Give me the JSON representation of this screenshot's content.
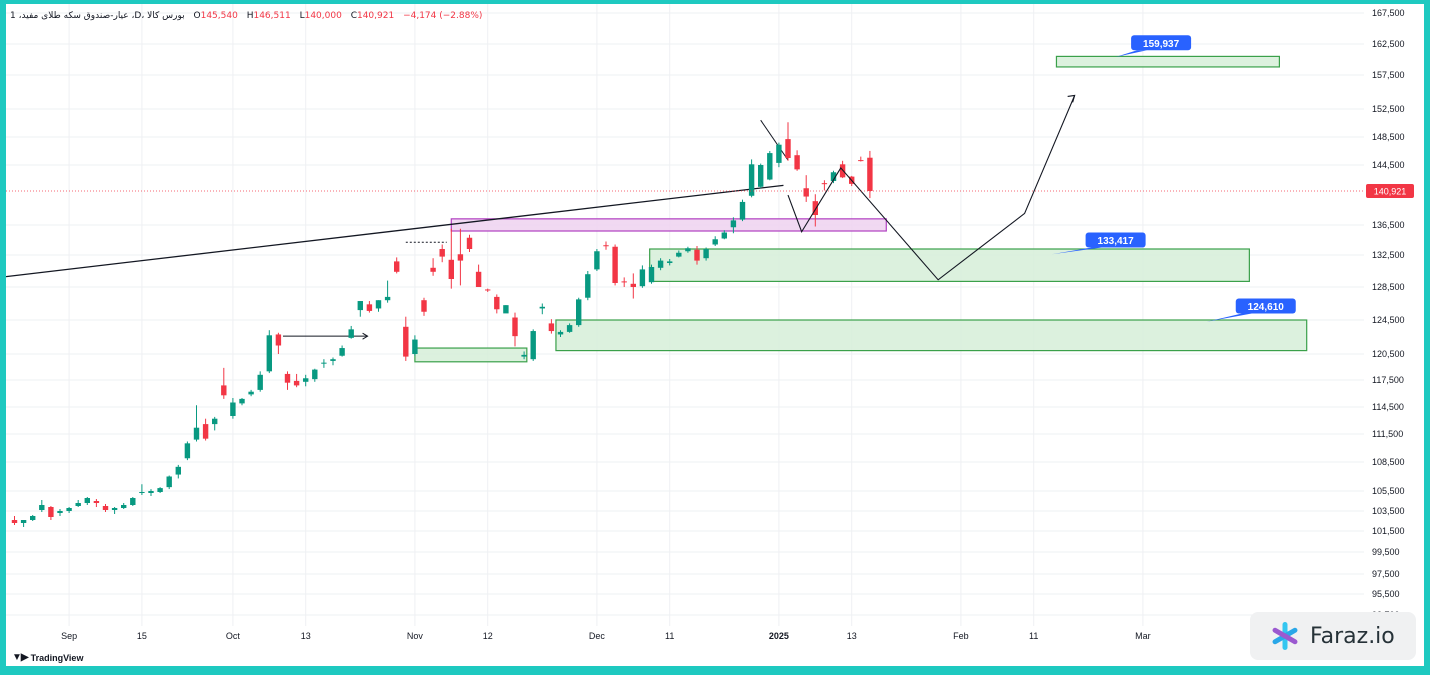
{
  "header": {
    "symbol": "1 ،عیار-صندوق سکه طلای مفید ،D، بورس کالا",
    "open_label": "O",
    "open": "145,540",
    "high_label": "H",
    "high": "146,511",
    "low_label": "L",
    "low": "140,000",
    "close_label": "C",
    "close": "140,921",
    "change": "−4,174 (−2.88%)"
  },
  "branding": {
    "tradingview": "TradingView",
    "watermark": "Faraz.io"
  },
  "colors": {
    "up": "#089981",
    "down": "#f23645",
    "zone_green": "#d6efd8",
    "zone_green_border": "#3aa04a",
    "zone_pink": "#efd2f0",
    "zone_pink_border": "#b040c0",
    "callout": "#2962ff"
  },
  "chart_data": {
    "type": "candlestick",
    "price_axis_ticks": [
      167500,
      162500,
      157500,
      152500,
      148500,
      144500,
      140921,
      136500,
      132500,
      128500,
      124500,
      120500,
      117500,
      114500,
      111500,
      108500,
      105500,
      103500,
      101500,
      99500,
      97500,
      95500,
      93700
    ],
    "price_axis_labels": [
      "167,500",
      "162,500",
      "157,500",
      "152,500",
      "148,500",
      "144,500",
      "140,921",
      "136,500",
      "132,500",
      "128,500",
      "124,500",
      "120,500",
      "117,500",
      "114,500",
      "111,500",
      "108,500",
      "105,500",
      "103,500",
      "101,500",
      "99,500",
      "97,500",
      "95,500",
      "93,700"
    ],
    "time_axis_labels": [
      "Sep",
      "15",
      "Oct",
      "13",
      "Nov",
      "12",
      "Dec",
      "11",
      "2025",
      "13",
      "Feb",
      "11",
      "Mar"
    ],
    "time_axis_bar_index": [
      6,
      14,
      24,
      32,
      44,
      52,
      64,
      72,
      84,
      92,
      104,
      112,
      124
    ],
    "last_price": 140921,
    "candles": [
      [
        102600,
        103000,
        102100,
        102300
      ],
      [
        102300,
        102600,
        101900,
        102600
      ],
      [
        102600,
        103100,
        102500,
        103000
      ],
      [
        103600,
        104600,
        103400,
        104100
      ],
      [
        103900,
        104000,
        102600,
        102900
      ],
      [
        103300,
        103700,
        103000,
        103500
      ],
      [
        103500,
        103900,
        103300,
        103800
      ],
      [
        104000,
        104600,
        103900,
        104300
      ],
      [
        104300,
        104900,
        104100,
        104800
      ],
      [
        104500,
        104700,
        103900,
        104300
      ],
      [
        104000,
        104200,
        103400,
        103600
      ],
      [
        103600,
        103900,
        103200,
        103800
      ],
      [
        103800,
        104300,
        103700,
        104100
      ],
      [
        104100,
        104900,
        104000,
        104800
      ],
      [
        105300,
        106200,
        105100,
        105400
      ],
      [
        105300,
        105700,
        105000,
        105500
      ],
      [
        105400,
        105900,
        105300,
        105800
      ],
      [
        105900,
        107100,
        105700,
        107000
      ],
      [
        107200,
        108200,
        106800,
        108000
      ],
      [
        108900,
        110700,
        108700,
        110500
      ],
      [
        110900,
        114700,
        110700,
        112200
      ],
      [
        112600,
        113200,
        110800,
        111000
      ],
      [
        112600,
        113400,
        111900,
        113200
      ],
      [
        116900,
        118900,
        115400,
        115800
      ],
      [
        113500,
        115500,
        113200,
        115000
      ],
      [
        114900,
        115500,
        114700,
        115400
      ],
      [
        115900,
        116400,
        115700,
        116200
      ],
      [
        116400,
        118500,
        116200,
        118100
      ],
      [
        118500,
        123300,
        118300,
        122700
      ],
      [
        122800,
        123000,
        120500,
        121500
      ],
      [
        118200,
        118500,
        116400,
        117200
      ],
      [
        117400,
        118200,
        116700,
        116900
      ],
      [
        117300,
        118100,
        116800,
        117700
      ],
      [
        117600,
        118800,
        117300,
        118700
      ],
      [
        119400,
        119900,
        118900,
        119500
      ],
      [
        119700,
        120100,
        119200,
        119900
      ],
      [
        120300,
        121500,
        120200,
        121200
      ],
      [
        122400,
        123800,
        122300,
        123400
      ],
      [
        125700,
        126800,
        124900,
        126800
      ],
      [
        126400,
        126800,
        125400,
        125600
      ],
      [
        125900,
        126900,
        125500,
        126900
      ],
      [
        126900,
        129300,
        126600,
        127300
      ],
      [
        131700,
        132200,
        130200,
        130400
      ],
      [
        123700,
        124900,
        119700,
        120200
      ],
      [
        120500,
        122700,
        120300,
        122200
      ],
      [
        126900,
        127200,
        125000,
        125500
      ],
      [
        130900,
        132100,
        129900,
        130400
      ],
      [
        133300,
        133900,
        131600,
        132300
      ],
      [
        131900,
        136000,
        128300,
        129500
      ],
      [
        132600,
        136000,
        128700,
        131800
      ],
      [
        134800,
        135200,
        132900,
        133300
      ],
      [
        130400,
        131300,
        128500,
        128500
      ],
      [
        128200,
        128300,
        127900,
        128100
      ],
      [
        127300,
        127600,
        125300,
        125800
      ],
      [
        125300,
        126300,
        125400,
        126300
      ],
      [
        124800,
        125400,
        121400,
        122600
      ],
      [
        120200,
        120800,
        119900,
        120400
      ],
      [
        119900,
        123400,
        119700,
        123200
      ],
      [
        125900,
        126500,
        125200,
        126100
      ],
      [
        124100,
        124600,
        122900,
        123200
      ],
      [
        122800,
        123300,
        122500,
        123100
      ],
      [
        123100,
        124100,
        123000,
        123900
      ],
      [
        123900,
        127200,
        123700,
        127000
      ],
      [
        127200,
        130500,
        126900,
        130100
      ],
      [
        130700,
        133300,
        130500,
        133000
      ],
      [
        133800,
        134300,
        133200,
        133700
      ],
      [
        133600,
        133900,
        128700,
        129000
      ],
      [
        129200,
        129700,
        128500,
        129100
      ],
      [
        128900,
        130200,
        127100,
        128500
      ],
      [
        128600,
        131200,
        128400,
        130700
      ],
      [
        129100,
        131300,
        128900,
        131000
      ],
      [
        130900,
        132100,
        130600,
        131800
      ],
      [
        131500,
        132000,
        131200,
        131700
      ],
      [
        132300,
        133100,
        132200,
        132800
      ],
      [
        133000,
        133600,
        132800,
        133400
      ],
      [
        133200,
        133700,
        131300,
        131800
      ],
      [
        132100,
        133500,
        131800,
        133300
      ],
      [
        133900,
        135000,
        133700,
        134600
      ],
      [
        134700,
        135800,
        134600,
        135500
      ],
      [
        136200,
        137500,
        135400,
        137100
      ],
      [
        137200,
        139800,
        137000,
        139500
      ],
      [
        140300,
        145300,
        140100,
        144600
      ],
      [
        141500,
        144700,
        141300,
        144500
      ],
      [
        142500,
        146500,
        142400,
        146200
      ],
      [
        144800,
        147700,
        144200,
        147400
      ],
      [
        148200,
        150600,
        145100,
        145500
      ],
      [
        145900,
        146600,
        143700,
        143900
      ],
      [
        141300,
        143100,
        139500,
        140200
      ],
      [
        139600,
        140500,
        136300,
        137800
      ],
      [
        142000,
        142400,
        141000,
        141900
      ],
      [
        142300,
        143700,
        142000,
        143500
      ],
      [
        144600,
        145100,
        142700,
        142800
      ],
      [
        142900,
        143000,
        141600,
        141900
      ],
      [
        145200,
        145700,
        145000,
        145100
      ],
      [
        145540,
        146511,
        140000,
        140921
      ]
    ],
    "zones": [
      {
        "type": "supply",
        "color": "pink",
        "label": ""
      },
      {
        "type": "demand",
        "color": "green",
        "label": "133,417"
      },
      {
        "type": "demand",
        "color": "green",
        "label": "124,610"
      },
      {
        "type": "demand",
        "color": "green",
        "label": ""
      },
      {
        "type": "target",
        "color": "green",
        "label": "159,937"
      }
    ],
    "grid": true
  }
}
